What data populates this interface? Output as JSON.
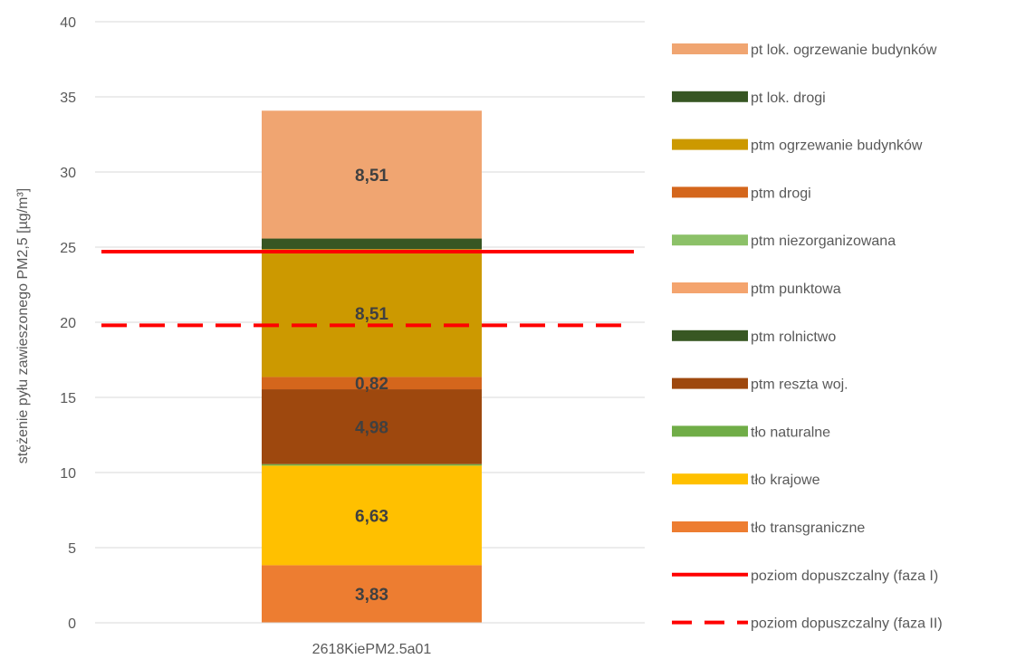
{
  "chart_data": {
    "type": "bar",
    "stacked": true,
    "ylabel": "stężenie pyłu zawieszonego PM2,5 [µg/m³]",
    "ylim": [
      0,
      40
    ],
    "yticks": [
      "0",
      "5",
      "10",
      "15",
      "20",
      "25",
      "30",
      "35",
      "40"
    ],
    "grid": true,
    "legend_position": "right",
    "categories": [
      "2618KiePM2.5a01"
    ],
    "series": [
      {
        "name": "tło transgraniczne",
        "color": "#ED7D31",
        "values": [
          3.83
        ],
        "label": "3,83"
      },
      {
        "name": "tło krajowe",
        "color": "#FFC000",
        "values": [
          6.63
        ],
        "label": "6,63"
      },
      {
        "name": "tło naturalne",
        "color": "#70AD47",
        "values": [
          0.1
        ],
        "label": ""
      },
      {
        "name": "ptm reszta woj.",
        "color": "#9E480E",
        "values": [
          4.98
        ],
        "label": "4,98"
      },
      {
        "name": "ptm rolnictwo",
        "color": "#385723",
        "values": [
          0.0
        ],
        "label": ""
      },
      {
        "name": "ptm punktowa",
        "color": "#F4A46E",
        "values": [
          0.0
        ],
        "label": ""
      },
      {
        "name": "ptm niezorganizowana",
        "color": "#8CC168",
        "values": [
          0.0
        ],
        "label": ""
      },
      {
        "name": "ptm drogi",
        "color": "#D4661C",
        "values": [
          0.82
        ],
        "label": "0,82"
      },
      {
        "name": "ptm ogrzewanie budynków",
        "color": "#CC9900",
        "values": [
          8.51
        ],
        "label": "8,51"
      },
      {
        "name": "pt lok. drogi",
        "color": "#375623",
        "values": [
          0.7
        ],
        "label": ""
      },
      {
        "name": "pt lok. ogrzewanie budynków",
        "color": "#F0A571",
        "values": [
          8.51
        ],
        "label": "8,51"
      }
    ],
    "lines": [
      {
        "name": "poziom dopuszczalny (faza I)",
        "value": 24.7,
        "color": "#FF0000",
        "style": "solid"
      },
      {
        "name": "poziom dopuszczalny (faza II)",
        "value": 19.8,
        "color": "#FF0000",
        "style": "dashed"
      }
    ],
    "legend_order": [
      "pt lok. ogrzewanie budynków",
      "pt lok. drogi",
      "ptm ogrzewanie budynków",
      "ptm drogi",
      "ptm niezorganizowana",
      "ptm punktowa",
      "ptm rolnictwo",
      "ptm reszta woj.",
      "tło naturalne",
      "tło krajowe",
      "tło transgraniczne",
      "poziom dopuszczalny (faza I)",
      "poziom dopuszczalny (faza II)"
    ]
  }
}
